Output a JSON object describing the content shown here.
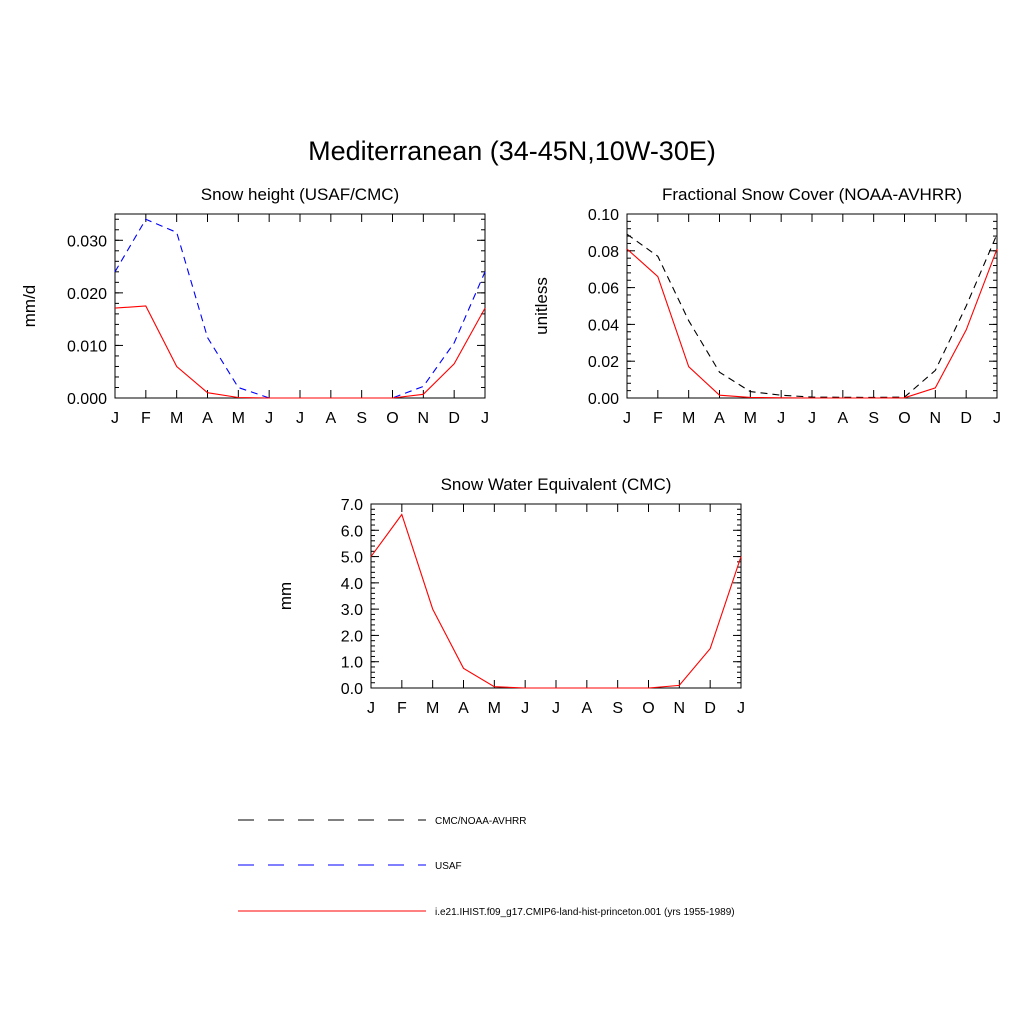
{
  "figure": {
    "title": "Mediterranean (34-45N,10W-30E)"
  },
  "chart_data": [
    {
      "type": "line",
      "title": "Snow height (USAF/CMC)",
      "xlabel": "",
      "ylabel": "mm/d",
      "categories": [
        "J",
        "F",
        "M",
        "A",
        "M",
        "J",
        "J",
        "A",
        "S",
        "O",
        "N",
        "D",
        "J"
      ],
      "ylim": [
        0,
        0.035
      ],
      "yticks": [
        0.0,
        0.01,
        0.02,
        0.03
      ],
      "ytick_labels": [
        "0.000",
        "0.010",
        "0.020",
        "0.030"
      ],
      "series": [
        {
          "name": "USAF",
          "color": "#0000ff",
          "dash": "dashed",
          "values": [
            0.024,
            0.034,
            0.0315,
            0.0115,
            0.002,
            0.0,
            0.0,
            0.0,
            0.0,
            0.0,
            0.0022,
            0.0105,
            0.024
          ]
        },
        {
          "name": "i.e21.IHIST.f09_g17.CMIP6-land-hist-princeton.001 (yrs 1955-1989)",
          "color": "#ff0000",
          "dash": "solid",
          "values": [
            0.0171,
            0.0175,
            0.006,
            0.001,
            0.0001,
            0.0,
            0.0,
            0.0,
            0.0,
            0.0,
            0.0007,
            0.0065,
            0.0171
          ]
        }
      ]
    },
    {
      "type": "line",
      "title": "Fractional Snow Cover (NOAA-AVHRR)",
      "xlabel": "",
      "ylabel": "unitless",
      "categories": [
        "J",
        "F",
        "M",
        "A",
        "M",
        "J",
        "J",
        "A",
        "S",
        "O",
        "N",
        "D",
        "J"
      ],
      "ylim": [
        0,
        0.1
      ],
      "yticks": [
        0.0,
        0.02,
        0.04,
        0.06,
        0.08,
        0.1
      ],
      "ytick_labels": [
        "0.00",
        "0.02",
        "0.04",
        "0.06",
        "0.08",
        "0.10"
      ],
      "series": [
        {
          "name": "CMC/NOAA-AVHRR",
          "color": "#000000",
          "dash": "dashed",
          "values": [
            0.089,
            0.077,
            0.042,
            0.014,
            0.0035,
            0.0015,
            0.0005,
            0.0004,
            0.0003,
            0.0005,
            0.015,
            0.05,
            0.089
          ]
        },
        {
          "name": "i.e21.IHIST.f09_g17.CMIP6-land-hist-princeton.001 (yrs 1955-1989)",
          "color": "#ff0000",
          "dash": "solid",
          "values": [
            0.081,
            0.066,
            0.017,
            0.0015,
            0.0003,
            0.0001,
            0.0,
            0.0,
            0.0,
            0.0001,
            0.0055,
            0.037,
            0.081
          ]
        }
      ]
    },
    {
      "type": "line",
      "title": "Snow Water Equivalent (CMC)",
      "xlabel": "",
      "ylabel": "mm",
      "categories": [
        "J",
        "F",
        "M",
        "A",
        "M",
        "J",
        "J",
        "A",
        "S",
        "O",
        "N",
        "D",
        "J"
      ],
      "ylim": [
        0,
        7.0
      ],
      "yticks": [
        0,
        1,
        2,
        3,
        4,
        5,
        6,
        7
      ],
      "ytick_labels": [
        "0.0",
        "1.0",
        "2.0",
        "3.0",
        "4.0",
        "5.0",
        "6.0",
        "7.0"
      ],
      "series": [
        {
          "name": "CMC/NOAA-AVHRR",
          "color": "#000000",
          "dash": "dashed",
          "values": [
            0.0,
            0.0,
            0.0,
            0.0,
            0.0,
            0.0,
            0.0,
            0.0,
            0.0,
            0.0,
            0.0,
            0.0,
            0.0
          ]
        },
        {
          "name": "i.e21.IHIST.f09_g17.CMIP6-land-hist-princeton.001 (yrs 1955-1989)",
          "color": "#ff0000",
          "dash": "solid",
          "values": [
            5.0,
            6.6,
            3.0,
            0.75,
            0.05,
            0.0,
            0.0,
            0.0,
            0.0,
            0.0,
            0.1,
            1.5,
            5.0
          ]
        }
      ]
    }
  ],
  "legend": {
    "placement": "bottom",
    "entries": [
      {
        "label": "CMC/NOAA-AVHRR",
        "color": "#000000",
        "dash": "dashed"
      },
      {
        "label": "USAF",
        "color": "#0000ff",
        "dash": "dashed"
      },
      {
        "label": "i.e21.IHIST.f09_g17.CMIP6-land-hist-princeton.001 (yrs 1955-1989)",
        "color": "#ff0000",
        "dash": "solid"
      }
    ]
  }
}
